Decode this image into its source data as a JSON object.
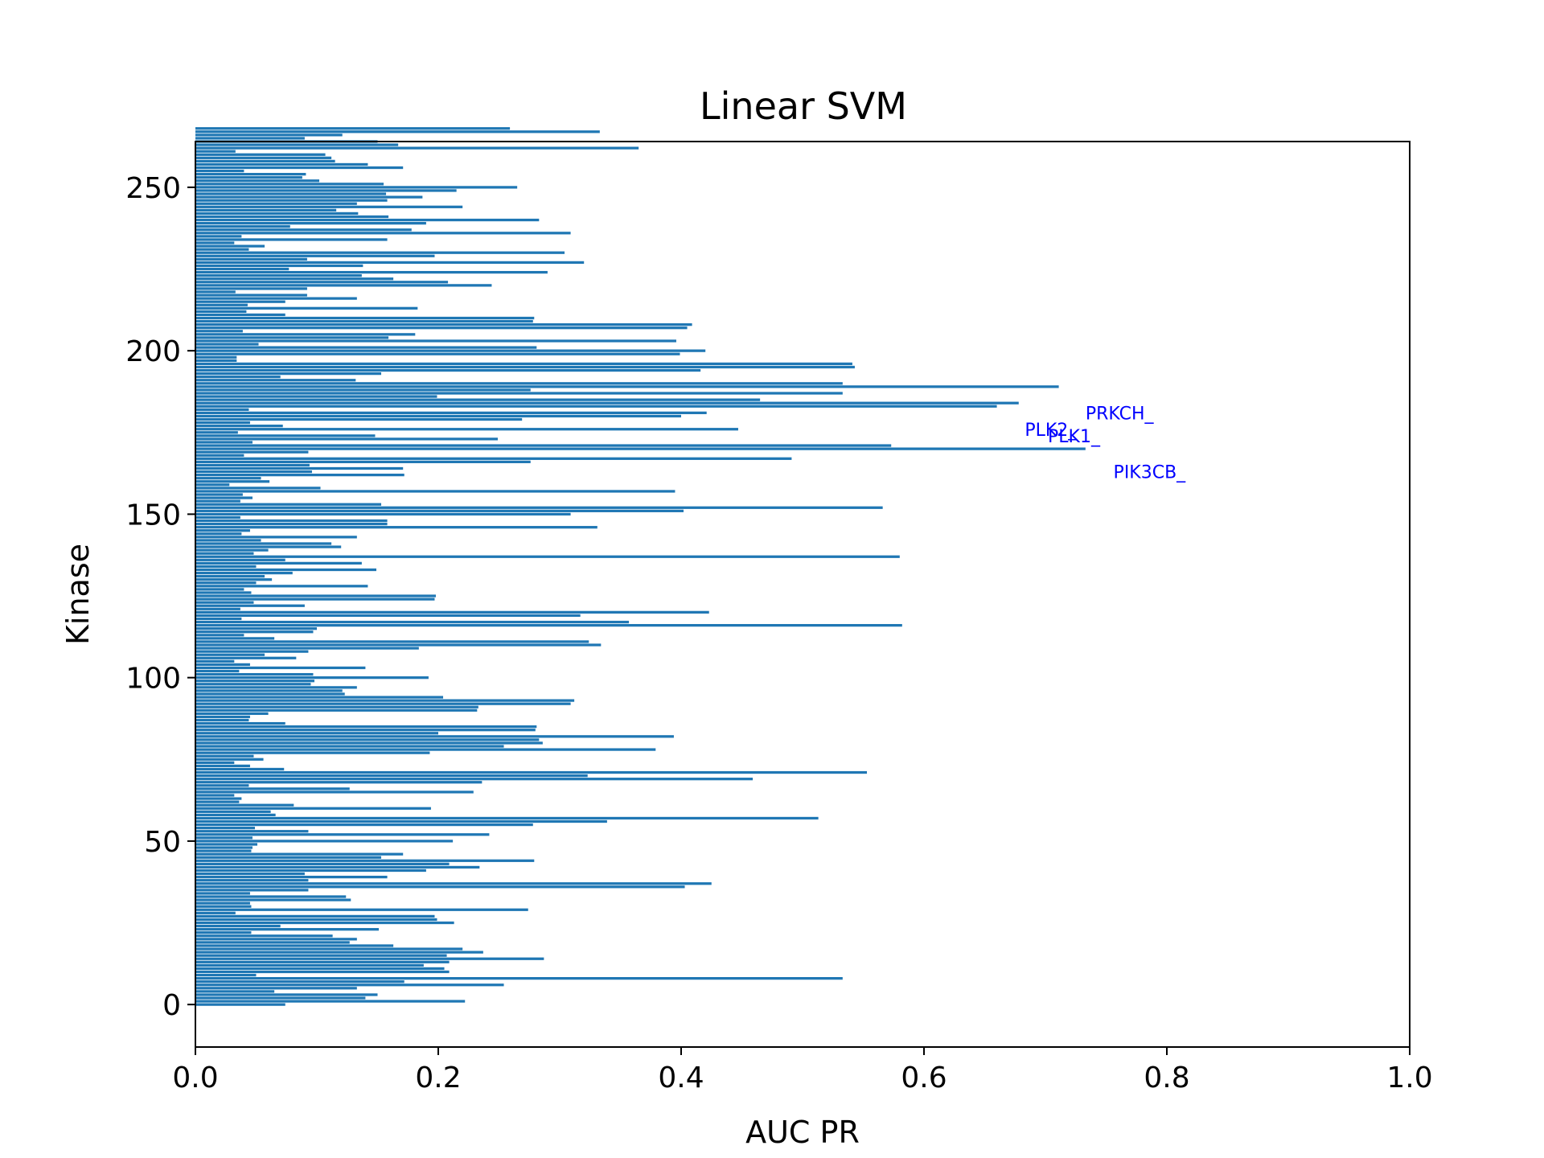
{
  "chart_data": {
    "type": "bar",
    "orientation": "horizontal",
    "title": "Linear SVM",
    "xlabel": "AUC PR",
    "ylabel": "Kinase",
    "xlim": [
      0.0,
      1.0
    ],
    "ylim": [
      -13,
      264
    ],
    "xticks": [
      "0.0",
      "0.2",
      "0.4",
      "0.6",
      "0.8",
      "1.0"
    ],
    "yticks": [
      "0",
      "50",
      "100",
      "150",
      "200",
      "250"
    ],
    "grid": false,
    "bar_color": "#1f77b4",
    "annotation_color": "#0000ff",
    "annotations": [
      {
        "text": "PRKCH_",
        "x": 0.733,
        "y": 179
      },
      {
        "text": "PLK2_",
        "x": 0.683,
        "y": 174
      },
      {
        "text": "PLK1_",
        "x": 0.702,
        "y": 172
      },
      {
        "text": "PIK3CB_",
        "x": 0.756,
        "y": 161
      }
    ],
    "values": [
      0.074,
      0.222,
      0.14,
      0.15,
      0.065,
      0.133,
      0.254,
      0.172,
      0.533,
      0.05,
      0.209,
      0.205,
      0.188,
      0.209,
      0.287,
      0.207,
      0.237,
      0.22,
      0.163,
      0.127,
      0.133,
      0.113,
      0.046,
      0.151,
      0.07,
      0.213,
      0.199,
      0.197,
      0.033,
      0.274,
      0.046,
      0.045,
      0.128,
      0.124,
      0.045,
      0.093,
      0.403,
      0.425,
      0.093,
      0.158,
      0.09,
      0.19,
      0.234,
      0.209,
      0.279,
      0.153,
      0.171,
      0.046,
      0.047,
      0.051,
      0.212,
      0.047,
      0.242,
      0.093,
      0.049,
      0.278,
      0.339,
      0.513,
      0.066,
      0.062,
      0.194,
      0.081,
      0.036,
      0.038,
      0.032,
      0.229,
      0.127,
      0.044,
      0.236,
      0.459,
      0.323,
      0.553,
      0.073,
      0.045,
      0.032,
      0.056,
      0.048,
      0.193,
      0.379,
      0.254,
      0.286,
      0.283,
      0.394,
      0.2,
      0.28,
      0.281,
      0.074,
      0.044,
      0.045,
      0.06,
      0.232,
      0.233,
      0.309,
      0.312,
      0.204,
      0.123,
      0.121,
      0.133,
      0.095,
      0.098,
      0.192,
      0.097,
      0.036,
      0.14,
      0.045,
      0.032,
      0.083,
      0.057,
      0.093,
      0.184,
      0.334,
      0.324,
      0.065,
      0.04,
      0.097,
      0.1,
      0.582,
      0.357,
      0.038,
      0.317,
      0.423,
      0.037,
      0.09,
      0.048,
      0.197,
      0.198,
      0.046,
      0.04,
      0.142,
      0.05,
      0.063,
      0.057,
      0.08,
      0.149,
      0.05,
      0.137,
      0.074,
      0.58,
      0.048,
      0.06,
      0.12,
      0.112,
      0.054,
      0.133,
      0.038,
      0.045,
      0.331,
      0.158,
      0.158,
      0.037,
      0.309,
      0.402,
      0.566,
      0.153,
      0.037,
      0.047,
      0.039,
      0.395,
      0.103,
      0.028,
      0.061,
      0.054,
      0.172,
      0.096,
      0.171,
      0.094,
      0.276,
      0.491,
      0.04,
      0.093,
      0.733,
      0.573,
      0.047,
      0.249,
      0.148,
      0.035,
      0.447,
      0.072,
      0.045,
      0.269,
      0.4,
      0.421,
      0.044,
      0.66,
      0.678,
      0.465,
      0.199,
      0.533,
      0.276,
      0.711,
      0.533,
      0.132,
      0.07,
      0.153,
      0.416,
      0.543,
      0.541,
      0.034,
      0.034,
      0.399,
      0.42,
      0.281,
      0.052,
      0.396,
      0.159,
      0.181,
      0.039,
      0.405,
      0.409,
      0.278,
      0.279,
      0.074,
      0.042,
      0.183,
      0.043,
      0.074,
      0.133,
      0.092,
      0.033,
      0.092,
      0.244,
      0.208,
      0.163,
      0.137,
      0.29,
      0.077,
      0.138,
      0.32,
      0.092,
      0.197,
      0.304,
      0.044,
      0.057,
      0.032,
      0.158,
      0.038,
      0.309,
      0.178,
      0.078,
      0.19,
      0.283,
      0.159,
      0.134,
      0.116,
      0.22,
      0.133,
      0.158,
      0.187,
      0.157,
      0.215,
      0.265,
      0.155,
      0.102,
      0.088,
      0.091,
      0.04,
      0.171,
      0.142,
      0.115,
      0.112,
      0.107,
      0.033,
      0.365,
      0.167,
      0.15,
      0.09,
      0.121,
      0.333,
      0.259
    ]
  }
}
